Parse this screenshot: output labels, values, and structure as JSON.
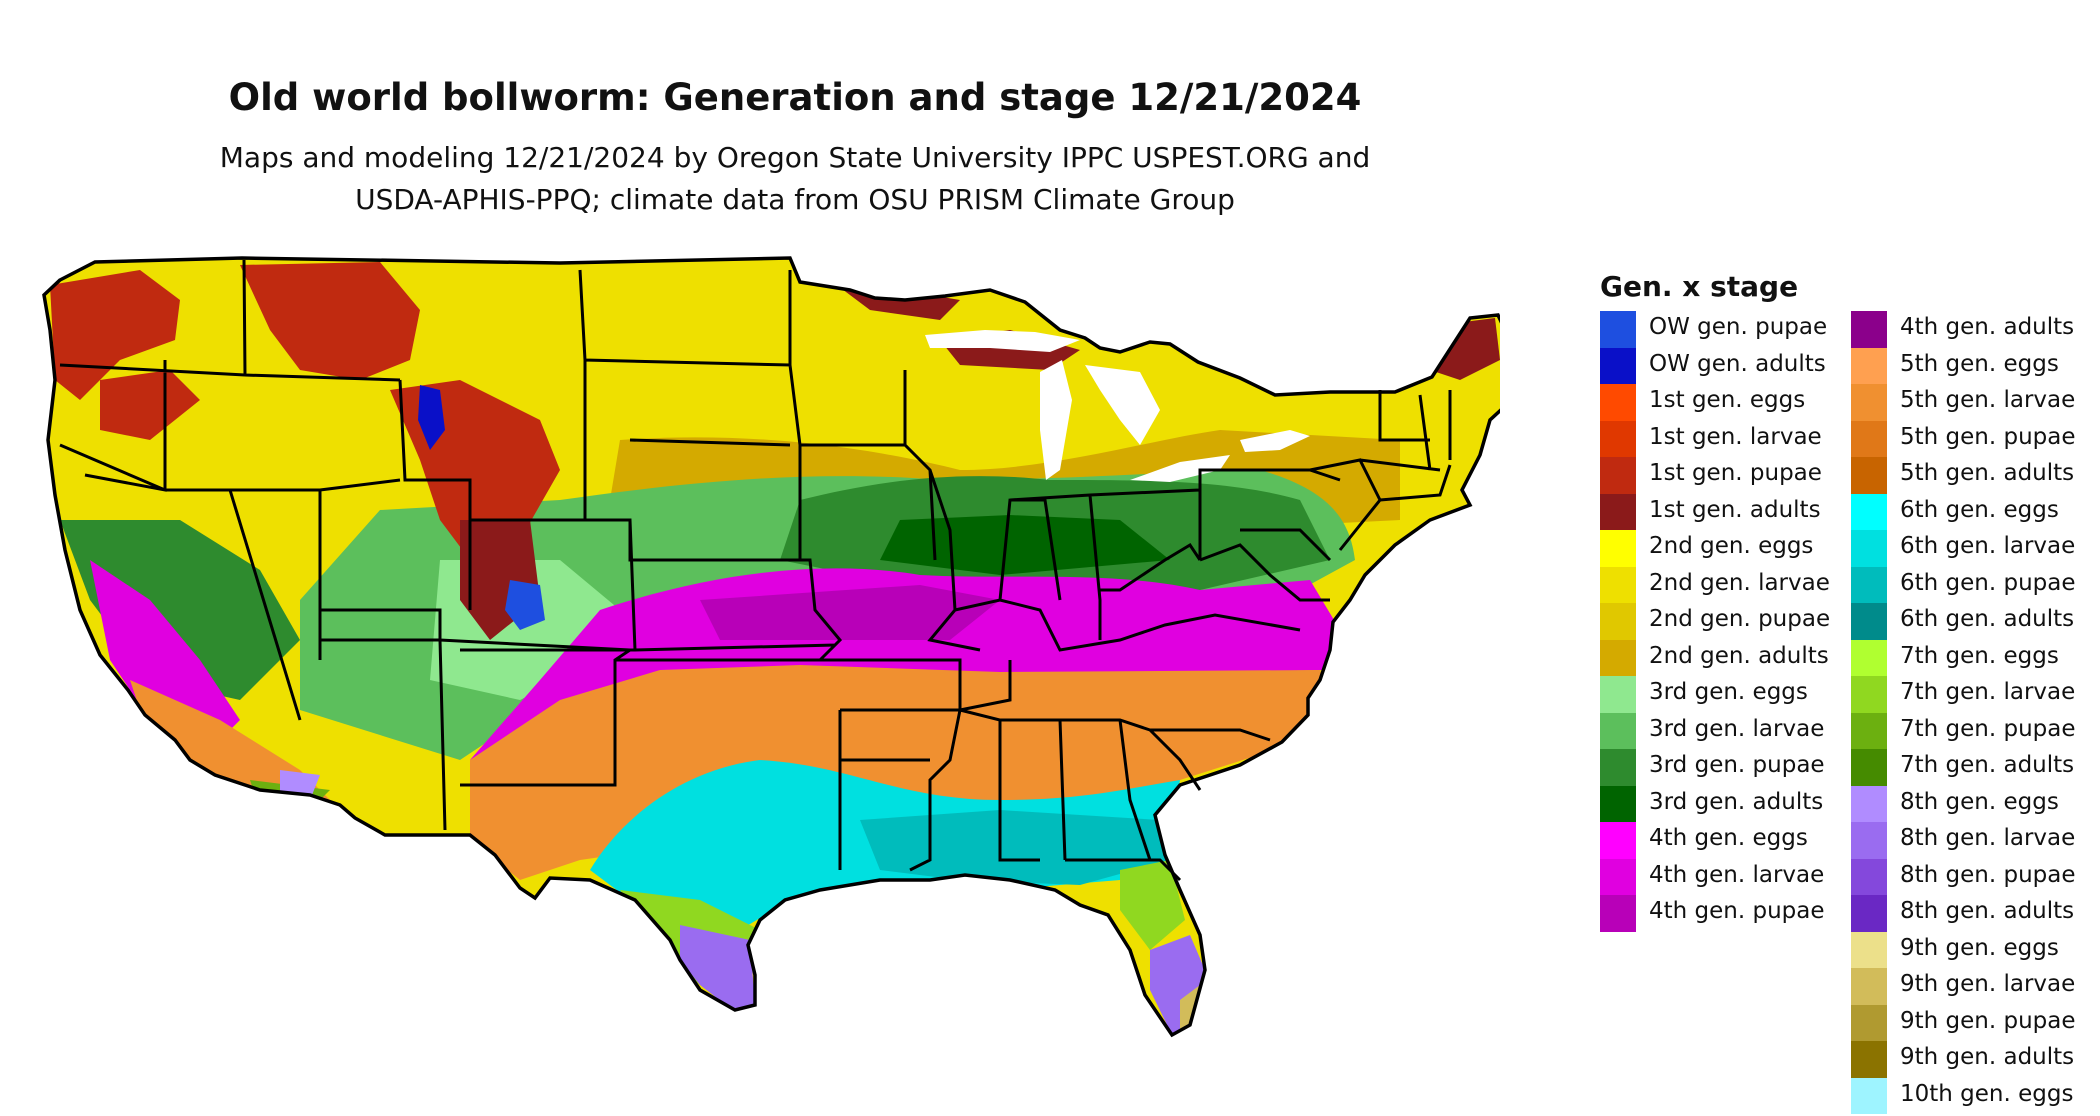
{
  "header": {
    "title": "Old world bollworm: Generation and stage 12/21/2024",
    "subtitle_line1": "Maps and modeling 12/21/2024 by Oregon State University IPPC USPEST.ORG and",
    "subtitle_line2": "USDA-APHIS-PPQ; climate data from OSU PRISM Climate Group"
  },
  "legend": {
    "title": "Gen. x stage",
    "items": [
      {
        "label": "OW gen. pupae",
        "color": "#1e4fe0"
      },
      {
        "label": "OW gen. adults",
        "color": "#0a10c8"
      },
      {
        "label": "1st gen. eggs",
        "color": "#ff4a00"
      },
      {
        "label": "1st gen. larvae",
        "color": "#e03800"
      },
      {
        "label": "1st gen. pupae",
        "color": "#c02a10"
      },
      {
        "label": "1st gen. adults",
        "color": "#8b1a1a"
      },
      {
        "label": "2nd gen. eggs",
        "color": "#ffff00"
      },
      {
        "label": "2nd gen. larvae",
        "color": "#eee000"
      },
      {
        "label": "2nd gen. pupae",
        "color": "#e0c800"
      },
      {
        "label": "2nd gen. adults",
        "color": "#d4aa00"
      },
      {
        "label": "3rd gen. eggs",
        "color": "#8fe88f"
      },
      {
        "label": "3rd gen. larvae",
        "color": "#5cbf5c"
      },
      {
        "label": "3rd gen. pupae",
        "color": "#2e8b2e"
      },
      {
        "label": "3rd gen. adults",
        "color": "#006400"
      },
      {
        "label": "4th gen. eggs",
        "color": "#ff00ff"
      },
      {
        "label": "4th gen. larvae",
        "color": "#e000e0"
      },
      {
        "label": "4th gen. pupae",
        "color": "#b800b8"
      },
      {
        "label": "4th gen. adults",
        "color": "#8b008b"
      },
      {
        "label": "5th gen. eggs",
        "color": "#ffa050"
      },
      {
        "label": "5th gen. larvae",
        "color": "#f09030"
      },
      {
        "label": "5th gen. pupae",
        "color": "#e07818"
      },
      {
        "label": "5th gen. adults",
        "color": "#c86400"
      },
      {
        "label": "6th gen. eggs",
        "color": "#00ffff"
      },
      {
        "label": "6th gen. larvae",
        "color": "#00e0e0"
      },
      {
        "label": "6th gen. pupae",
        "color": "#00bcbc"
      },
      {
        "label": "6th gen. adults",
        "color": "#008b8b"
      },
      {
        "label": "7th gen. eggs",
        "color": "#b0ff30"
      },
      {
        "label": "7th gen. larvae",
        "color": "#90d820"
      },
      {
        "label": "7th gen. pupae",
        "color": "#6cb010"
      },
      {
        "label": "7th gen. adults",
        "color": "#458b00"
      },
      {
        "label": "8th gen. eggs",
        "color": "#b08cff"
      },
      {
        "label": "8th gen. larvae",
        "color": "#9a6cf0"
      },
      {
        "label": "8th gen. pupae",
        "color": "#8448dc"
      },
      {
        "label": "8th gen. adults",
        "color": "#6a28c4"
      },
      {
        "label": "9th gen. eggs",
        "color": "#ece08a"
      },
      {
        "label": "9th gen. larvae",
        "color": "#d2bc5a"
      },
      {
        "label": "9th gen. pupae",
        "color": "#b09a30"
      },
      {
        "label": "9th gen. adults",
        "color": "#8b7300"
      },
      {
        "label": "10th gen. eggs",
        "color": "#9ef4ff"
      }
    ]
  },
  "map": {
    "region": "contiguous-united-states"
  }
}
